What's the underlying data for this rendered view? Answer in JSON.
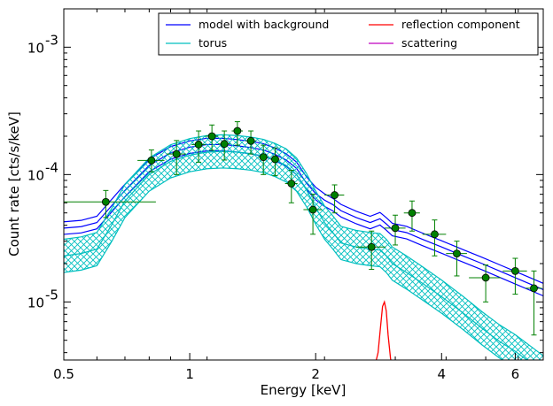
{
  "chart_data": {
    "type": "line",
    "xlabel": "Energy [keV]",
    "ylabel": "Count rate [cts/s/keV]",
    "x_scale": "log",
    "y_scale": "log",
    "xlim": [
      0.5,
      7.0
    ],
    "ylim": [
      3.5e-06,
      0.002
    ],
    "x_ticks": [
      {
        "value": 0.5,
        "label": "0.5"
      },
      {
        "value": 1,
        "label": "1"
      },
      {
        "value": 2,
        "label": "2"
      },
      {
        "value": 4,
        "label": "4"
      },
      {
        "value": 6,
        "label": "6"
      }
    ],
    "y_ticks": [
      {
        "value": 1e-05,
        "base": "10",
        "exp": "-5"
      },
      {
        "value": 0.0001,
        "base": "10",
        "exp": "-4"
      },
      {
        "value": 0.001,
        "base": "10",
        "exp": "-3"
      }
    ],
    "legend": {
      "position": "top-right",
      "columns": 2,
      "entries": [
        {
          "label": "model with background",
          "color": "#0000ff"
        },
        {
          "label": "reflection component",
          "color": "#ff0000"
        },
        {
          "label": "torus",
          "color": "#00bfbf"
        },
        {
          "label": "scattering",
          "color": "#bf00bf"
        }
      ]
    },
    "series": [
      {
        "name": "model with background",
        "color": "#0000ff",
        "band": true,
        "x": [
          0.5,
          0.55,
          0.6,
          0.7,
          0.8,
          0.9,
          1.0,
          1.1,
          1.2,
          1.3,
          1.4,
          1.5,
          1.6,
          1.7,
          1.8,
          1.9,
          2.0,
          2.1,
          2.2,
          2.3,
          2.5,
          2.7,
          2.85,
          2.95,
          3.05,
          3.3,
          3.6,
          4.0,
          4.5,
          5.0,
          5.5,
          6.0,
          7.0
        ],
        "y": [
          3.8e-05,
          3.9e-05,
          4.2e-05,
          7.5e-05,
          0.000118,
          0.000148,
          0.000164,
          0.000172,
          0.000172,
          0.000168,
          0.000163,
          0.000156,
          0.000144,
          0.00013,
          0.000112,
          8.6e-05,
          7.1e-05,
          6.3e-05,
          5.8e-05,
          5.2e-05,
          4.6e-05,
          4.2e-05,
          4.5e-05,
          4.1e-05,
          3.7e-05,
          3.5e-05,
          3.1e-05,
          2.7e-05,
          2.3e-05,
          2e-05,
          1.75e-05,
          1.55e-05,
          1.25e-05
        ],
        "band_factor": 1.12
      },
      {
        "name": "torus",
        "color": "#00bfbf",
        "band": true,
        "hatched": true,
        "x": [
          0.5,
          0.55,
          0.6,
          0.65,
          0.7,
          0.8,
          0.9,
          1.0,
          1.1,
          1.2,
          1.3,
          1.4,
          1.5,
          1.6,
          1.7,
          1.8,
          1.9,
          2.0,
          2.1,
          2.2,
          2.3,
          2.5,
          2.7,
          2.85,
          2.95,
          3.05,
          3.3,
          3.6,
          4.0,
          4.5,
          5.0,
          5.5,
          6.0,
          7.0
        ],
        "y": [
          2.3e-05,
          2.4e-05,
          2.6e-05,
          4e-05,
          6.2e-05,
          0.0001,
          0.000127,
          0.000142,
          0.00015,
          0.000152,
          0.00015,
          0.000146,
          0.00014,
          0.00013,
          0.000118,
          0.0001,
          7.6e-05,
          5.5e-05,
          4.2e-05,
          3.5e-05,
          2.9e-05,
          2.7e-05,
          2.6e-05,
          2.55e-05,
          2.3e-05,
          2e-05,
          1.7e-05,
          1.4e-05,
          1.1e-05,
          8.2e-06,
          6.2e-06,
          4.9e-06,
          4.1e-06,
          2.8e-06
        ],
        "band_factor": 1.35
      },
      {
        "name": "reflection component",
        "color": "#ff0000",
        "band": false,
        "x": [
          2.76,
          2.82,
          2.86,
          2.89,
          2.92,
          2.95,
          2.98,
          3.02,
          3.06
        ],
        "y": [
          3e-06,
          4e-06,
          6.5e-06,
          9.2e-06,
          1e-05,
          8.5e-06,
          5.5e-06,
          3.6e-06,
          3e-06
        ]
      },
      {
        "name": "data",
        "color": "#008000",
        "points": [
          {
            "x": 0.63,
            "xerr": [
              0.13,
              0.2
            ],
            "y": 6.1e-05,
            "ylo": 4.6e-05,
            "yhi": 7.5e-05
          },
          {
            "x": 0.81,
            "xerr": [
              0.06,
              0.06
            ],
            "y": 0.000129,
            "ylo": 0.000105,
            "yhi": 0.000156
          },
          {
            "x": 0.93,
            "xerr": [
              0.05,
              0.05
            ],
            "y": 0.000145,
            "ylo": 0.0001,
            "yhi": 0.000185
          },
          {
            "x": 1.05,
            "xerr": [
              0.04,
              0.04
            ],
            "y": 0.000172,
            "ylo": 0.000125,
            "yhi": 0.00022
          },
          {
            "x": 1.13,
            "xerr": [
              0.04,
              0.04
            ],
            "y": 0.0002,
            "ylo": 0.000155,
            "yhi": 0.000245
          },
          {
            "x": 1.21,
            "xerr": [
              0.04,
              0.04
            ],
            "y": 0.000174,
            "ylo": 0.00013,
            "yhi": 0.00022
          },
          {
            "x": 1.3,
            "xerr": [
              0.04,
              0.04
            ],
            "y": 0.00022,
            "ylo": 0.00017,
            "yhi": 0.00026
          },
          {
            "x": 1.4,
            "xerr": [
              0.04,
              0.04
            ],
            "y": 0.000184,
            "ylo": 0.000145,
            "yhi": 0.00022
          },
          {
            "x": 1.5,
            "xerr": [
              0.04,
              0.04
            ],
            "y": 0.000137,
            "ylo": 0.0001,
            "yhi": 0.00017
          },
          {
            "x": 1.6,
            "xerr": [
              0.04,
              0.04
            ],
            "y": 0.000132,
            "ylo": 9.8e-05,
            "yhi": 0.000162
          },
          {
            "x": 1.75,
            "xerr": [
              0.06,
              0.06
            ],
            "y": 8.5e-05,
            "ylo": 6e-05,
            "yhi": 0.000108
          },
          {
            "x": 1.97,
            "xerr": [
              0.1,
              0.1
            ],
            "y": 5.3e-05,
            "ylo": 3.4e-05,
            "yhi": 7e-05
          },
          {
            "x": 2.22,
            "xerr": [
              0.12,
              0.12
            ],
            "y": 6.9e-05,
            "ylo": 5e-05,
            "yhi": 8.3e-05
          },
          {
            "x": 2.72,
            "xerr": [
              0.22,
              0.22
            ],
            "y": 2.7e-05,
            "ylo": 1.8e-05,
            "yhi": 3.6e-05
          },
          {
            "x": 3.1,
            "xerr": [
              0.18,
              0.18
            ],
            "y": 3.8e-05,
            "ylo": 2.8e-05,
            "yhi": 4.8e-05
          },
          {
            "x": 3.4,
            "xerr": [
              0.15,
              0.15
            ],
            "y": 5e-05,
            "ylo": 3.6e-05,
            "yhi": 6.2e-05
          },
          {
            "x": 3.85,
            "xerr": [
              0.25,
              0.25
            ],
            "y": 3.4e-05,
            "ylo": 2.3e-05,
            "yhi": 4.4e-05
          },
          {
            "x": 4.35,
            "xerr": [
              0.25,
              0.25
            ],
            "y": 2.4e-05,
            "ylo": 1.6e-05,
            "yhi": 3e-05
          },
          {
            "x": 5.1,
            "xerr": [
              0.45,
              0.45
            ],
            "y": 1.55e-05,
            "ylo": 1e-05,
            "yhi": 1.95e-05
          },
          {
            "x": 6.0,
            "xerr": [
              0.4,
              0.4
            ],
            "y": 1.75e-05,
            "ylo": 1.15e-05,
            "yhi": 2.2e-05
          },
          {
            "x": 6.65,
            "xerr": [
              0.3,
              0.3
            ],
            "y": 1.28e-05,
            "ylo": 5.5e-06,
            "yhi": 1.75e-05
          }
        ]
      }
    ]
  }
}
